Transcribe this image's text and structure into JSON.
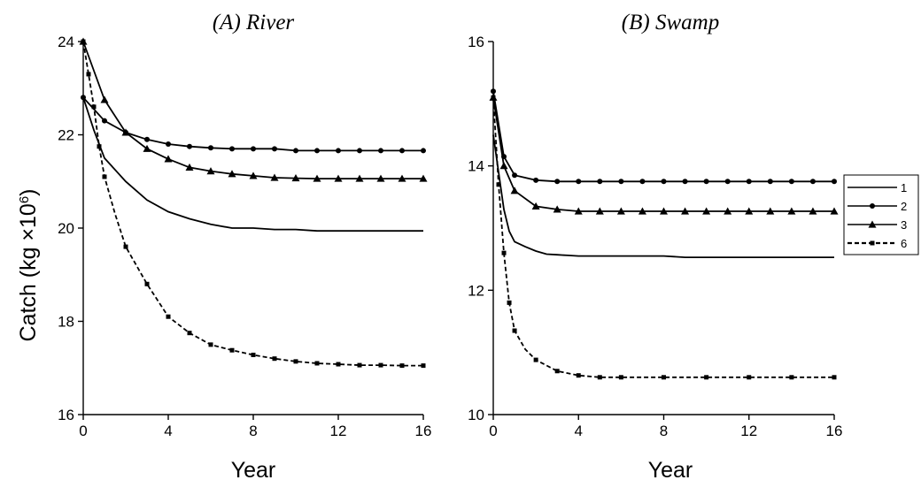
{
  "ylabel_prefix": "Catch (kg ",
  "ylabel_times": "×10",
  "ylabel_exp": "6",
  "ylabel_suffix": ")",
  "chart_data": [
    {
      "type": "line",
      "title": "(A) River",
      "xlabel": "Year",
      "ylabel": "Catch (kg ×10^6)",
      "xlim": [
        0,
        16
      ],
      "ylim": [
        16,
        24
      ],
      "xticks": [
        0,
        4,
        8,
        12,
        16
      ],
      "yticks": [
        16,
        18,
        20,
        22,
        24
      ],
      "grid": false,
      "series": [
        {
          "name": "1",
          "style": "solid",
          "marker": "none",
          "x": [
            0,
            0.5,
            1,
            2,
            3,
            4,
            5,
            6,
            7,
            8,
            9,
            10,
            11,
            12,
            13,
            14,
            15,
            16
          ],
          "y": [
            22.8,
            22.1,
            21.5,
            21.0,
            20.6,
            20.35,
            20.2,
            20.08,
            20.0,
            20.0,
            19.97,
            19.97,
            19.94,
            19.94,
            19.94,
            19.94,
            19.94,
            19.94
          ]
        },
        {
          "name": "2",
          "style": "solid",
          "marker": "circle",
          "x": [
            0,
            1,
            2,
            3,
            4,
            5,
            6,
            7,
            8,
            9,
            10,
            11,
            12,
            13,
            14,
            15,
            16
          ],
          "y": [
            22.8,
            22.3,
            22.05,
            21.9,
            21.8,
            21.75,
            21.72,
            21.7,
            21.7,
            21.7,
            21.66,
            21.66,
            21.66,
            21.66,
            21.66,
            21.66,
            21.66
          ]
        },
        {
          "name": "3",
          "style": "solid",
          "marker": "triangle",
          "x": [
            0,
            1,
            2,
            3,
            4,
            5,
            6,
            7,
            8,
            9,
            10,
            11,
            12,
            13,
            14,
            15,
            16
          ],
          "y": [
            24.0,
            22.75,
            22.05,
            21.7,
            21.48,
            21.3,
            21.22,
            21.16,
            21.12,
            21.08,
            21.07,
            21.06,
            21.06,
            21.06,
            21.06,
            21.06,
            21.06
          ]
        },
        {
          "name": "6",
          "style": "dashed",
          "marker": "square",
          "x": [
            0,
            0.25,
            0.5,
            0.75,
            1,
            1.5,
            2,
            3,
            4,
            5,
            6,
            7,
            8,
            9,
            10,
            11,
            12,
            13,
            14,
            15,
            16
          ],
          "y": [
            24.0,
            23.3,
            22.6,
            21.75,
            21.1,
            20.3,
            19.6,
            18.8,
            18.1,
            17.75,
            17.5,
            17.38,
            17.28,
            17.2,
            17.14,
            17.1,
            17.08,
            17.06,
            17.06,
            17.05,
            17.05
          ]
        }
      ]
    },
    {
      "type": "line",
      "title": "(B) Swamp",
      "xlabel": "Year",
      "ylabel": "",
      "xlim": [
        0,
        16
      ],
      "ylim": [
        10,
        16
      ],
      "xticks": [
        0,
        4,
        8,
        12,
        16
      ],
      "yticks": [
        10,
        12,
        14,
        16
      ],
      "grid": false,
      "series": [
        {
          "name": "1",
          "style": "solid",
          "marker": "none",
          "x": [
            0,
            0.25,
            0.5,
            0.75,
            1,
            1.5,
            2,
            2.5,
            3,
            3.5,
            4,
            5,
            6,
            7,
            8,
            9,
            10,
            12,
            14,
            16
          ],
          "y": [
            14.5,
            13.9,
            13.3,
            12.95,
            12.78,
            12.7,
            12.63,
            12.58,
            12.57,
            12.56,
            12.55,
            12.55,
            12.55,
            12.55,
            12.55,
            12.53,
            12.53,
            12.53,
            12.53,
            12.53
          ]
        },
        {
          "name": "2",
          "style": "solid",
          "marker": "circle",
          "x": [
            0,
            0.5,
            1,
            2,
            3,
            4,
            5,
            6,
            7,
            8,
            9,
            10,
            11,
            12,
            13,
            14,
            15,
            16
          ],
          "y": [
            15.2,
            14.15,
            13.85,
            13.77,
            13.75,
            13.75,
            13.75,
            13.75,
            13.75,
            13.75,
            13.75,
            13.75,
            13.75,
            13.75,
            13.75,
            13.75,
            13.75,
            13.75
          ]
        },
        {
          "name": "3",
          "style": "solid",
          "marker": "triangle",
          "x": [
            0,
            0.5,
            1,
            2,
            3,
            4,
            5,
            6,
            7,
            8,
            9,
            10,
            11,
            12,
            13,
            14,
            15,
            16
          ],
          "y": [
            15.1,
            14.0,
            13.6,
            13.35,
            13.3,
            13.27,
            13.27,
            13.27,
            13.27,
            13.27,
            13.27,
            13.27,
            13.27,
            13.27,
            13.27,
            13.27,
            13.27,
            13.27
          ]
        },
        {
          "name": "6",
          "style": "dashed",
          "marker": "square",
          "x": [
            0,
            0.25,
            0.5,
            0.75,
            1,
            1.5,
            2,
            3,
            4,
            5,
            6,
            8,
            10,
            12,
            14,
            16
          ],
          "y": [
            15.1,
            13.7,
            12.6,
            11.8,
            11.35,
            11.05,
            10.88,
            10.7,
            10.63,
            10.6,
            10.6,
            10.6,
            10.6,
            10.6,
            10.6,
            10.6
          ]
        }
      ]
    }
  ],
  "legend": {
    "placement": "right",
    "entries": [
      {
        "label": "1",
        "style": "solid",
        "marker": "none"
      },
      {
        "label": "2",
        "style": "solid",
        "marker": "circle"
      },
      {
        "label": "3",
        "style": "solid",
        "marker": "triangle"
      },
      {
        "label": "6",
        "style": "dashed",
        "marker": "square"
      }
    ]
  }
}
